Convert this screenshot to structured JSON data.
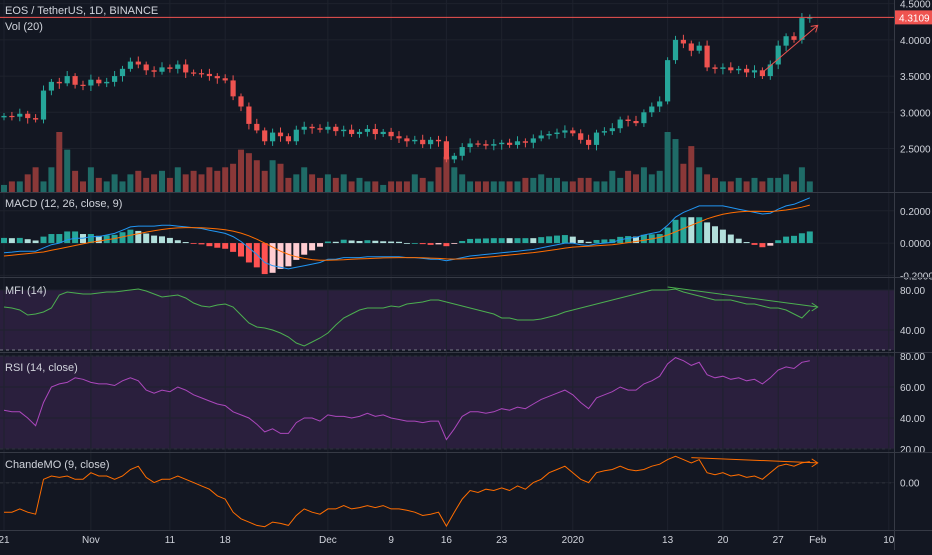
{
  "header": {
    "symbol_line": "EOS / TetherUS, 1D, BINANCE",
    "volume_label": "Vol (20)"
  },
  "colors": {
    "background": "#131722",
    "grid": "#1e222d",
    "separator": "#363a45",
    "up": "#26a69a",
    "down": "#ef5350",
    "volume_up": "#1f6b67",
    "volume_down": "#8a3838",
    "macd_line": "#2196f3",
    "signal_line": "#ff6d00",
    "hist_up_strong": "#26a69a",
    "hist_up_weak": "#b2dfdb",
    "hist_down_strong": "#ff5252",
    "hist_down_weak": "#ffcdd2",
    "mfi_line": "#4caf50",
    "rsi_line": "#ab47bc",
    "chande_line": "#ff6d00",
    "band_fill": "#2a1f3d",
    "price_tag": "#ef5350",
    "trendline": "#ef5350",
    "axis_text": "#d1d4dc"
  },
  "price_tag": "4.3109",
  "x_axis": {
    "ticks": [
      {
        "label": "21",
        "day": 0
      },
      {
        "label": "Nov",
        "day": 11
      },
      {
        "label": "11",
        "day": 21
      },
      {
        "label": "18",
        "day": 28
      },
      {
        "label": "Dec",
        "day": 41
      },
      {
        "label": "9",
        "day": 49
      },
      {
        "label": "16",
        "day": 56
      },
      {
        "label": "23",
        "day": 63
      },
      {
        "label": "2020",
        "day": 72
      },
      {
        "label": "13",
        "day": 84
      },
      {
        "label": "20",
        "day": 91
      },
      {
        "label": "27",
        "day": 98
      },
      {
        "label": "Feb",
        "day": 103
      },
      {
        "label": "10",
        "day": 112
      }
    ]
  },
  "panes": {
    "price": {
      "ylim": [
        1.9,
        4.55
      ],
      "ticks": [
        "2.5000",
        "3.0000",
        "3.5000",
        "4.0000",
        "4.5000"
      ]
    },
    "macd": {
      "label": "MACD (12, 26, close, 9)",
      "ylim": [
        -0.21,
        0.31
      ],
      "ticks": [
        "-0.2000",
        "0.0000",
        "0.2000"
      ]
    },
    "mfi": {
      "label": "MFI (14)",
      "ylim": [
        18,
        92
      ],
      "ticks": [
        "40.00",
        "80.00"
      ],
      "bands": [
        20,
        80
      ]
    },
    "rsi": {
      "label": "RSI (14, close)",
      "ylim": [
        18,
        82
      ],
      "ticks": [
        "20.00",
        "40.00",
        "60.00",
        "80.00"
      ],
      "bands": [
        20,
        80
      ]
    },
    "chande": {
      "label": "ChandeMO (9, close)",
      "ylim": [
        -72,
        45
      ],
      "ticks": [
        "0.00"
      ]
    }
  },
  "chart_data": {
    "type": "line",
    "x_start_day": 0,
    "closes": [
      2.95,
      2.94,
      2.98,
      2.92,
      2.9,
      3.3,
      3.42,
      3.4,
      3.5,
      3.38,
      3.37,
      3.45,
      3.4,
      3.42,
      3.5,
      3.6,
      3.7,
      3.66,
      3.58,
      3.56,
      3.62,
      3.6,
      3.66,
      3.55,
      3.54,
      3.53,
      3.5,
      3.47,
      3.44,
      3.22,
      3.08,
      2.84,
      2.75,
      2.6,
      2.72,
      2.67,
      2.6,
      2.76,
      2.8,
      2.78,
      2.76,
      2.8,
      2.74,
      2.76,
      2.7,
      2.73,
      2.77,
      2.7,
      2.73,
      2.67,
      2.64,
      2.6,
      2.62,
      2.56,
      2.62,
      2.6,
      2.35,
      2.4,
      2.52,
      2.57,
      2.56,
      2.54,
      2.56,
      2.58,
      2.55,
      2.6,
      2.58,
      2.64,
      2.68,
      2.7,
      2.72,
      2.75,
      2.71,
      2.62,
      2.55,
      2.72,
      2.74,
      2.78,
      2.9,
      2.88,
      2.85,
      3.0,
      3.08,
      3.15,
      3.72,
      4.0,
      3.95,
      3.85,
      3.92,
      3.62,
      3.6,
      3.62,
      3.58,
      3.6,
      3.55,
      3.58,
      3.5,
      3.66,
      3.92,
      4.05,
      4.0,
      4.3,
      4.31
    ],
    "volumes": [
      2,
      3,
      3,
      5,
      7,
      3,
      7,
      17,
      12,
      6,
      3,
      7,
      4,
      3,
      5,
      3,
      5,
      6,
      4,
      5,
      6,
      4,
      7,
      5,
      6,
      5,
      7,
      6,
      7,
      8,
      12,
      11,
      9,
      6,
      9,
      8,
      4,
      5,
      7,
      5,
      4,
      5,
      4,
      5,
      3,
      4,
      3,
      3,
      2,
      3,
      3,
      3,
      5,
      4,
      3,
      7,
      10,
      7,
      5,
      3,
      3,
      3,
      3,
      3,
      3,
      3,
      4,
      4,
      5,
      4,
      4,
      3,
      3,
      4,
      4,
      3,
      3,
      6,
      4,
      6,
      5,
      7,
      5,
      6,
      17,
      15,
      8,
      13,
      7,
      5,
      4,
      3,
      3,
      4,
      3,
      4,
      3,
      4,
      4,
      5,
      3,
      7,
      3
    ],
    "macd": [
      -0.06,
      -0.056,
      -0.05,
      -0.05,
      -0.05,
      -0.03,
      -0.01,
      0.0,
      0.02,
      0.03,
      0.03,
      0.04,
      0.04,
      0.05,
      0.06,
      0.08,
      0.1,
      0.105,
      0.105,
      0.105,
      0.11,
      0.11,
      0.105,
      0.1,
      0.095,
      0.09,
      0.08,
      0.07,
      0.06,
      0.04,
      0.01,
      -0.03,
      -0.07,
      -0.12,
      -0.14,
      -0.15,
      -0.16,
      -0.15,
      -0.14,
      -0.13,
      -0.12,
      -0.1,
      -0.1,
      -0.09,
      -0.09,
      -0.09,
      -0.085,
      -0.085,
      -0.085,
      -0.085,
      -0.085,
      -0.09,
      -0.09,
      -0.095,
      -0.1,
      -0.1,
      -0.11,
      -0.1,
      -0.09,
      -0.08,
      -0.075,
      -0.07,
      -0.065,
      -0.06,
      -0.055,
      -0.05,
      -0.045,
      -0.04,
      -0.03,
      -0.02,
      -0.01,
      0.0,
      0.0,
      -0.01,
      -0.015,
      -0.005,
      0.0,
      0.005,
      0.02,
      0.03,
      0.035,
      0.05,
      0.06,
      0.07,
      0.11,
      0.16,
      0.19,
      0.21,
      0.23,
      0.23,
      0.23,
      0.23,
      0.22,
      0.21,
      0.2,
      0.19,
      0.18,
      0.185,
      0.21,
      0.23,
      0.24,
      0.26,
      0.28
    ],
    "signal": [
      -0.08,
      -0.075,
      -0.07,
      -0.065,
      -0.06,
      -0.055,
      -0.045,
      -0.035,
      -0.025,
      -0.015,
      -0.005,
      0.005,
      0.012,
      0.02,
      0.028,
      0.038,
      0.048,
      0.058,
      0.068,
      0.076,
      0.084,
      0.09,
      0.094,
      0.096,
      0.096,
      0.095,
      0.092,
      0.088,
      0.082,
      0.074,
      0.062,
      0.045,
      0.024,
      0.0,
      -0.025,
      -0.05,
      -0.07,
      -0.085,
      -0.095,
      -0.102,
      -0.106,
      -0.106,
      -0.105,
      -0.103,
      -0.1,
      -0.098,
      -0.096,
      -0.094,
      -0.092,
      -0.091,
      -0.09,
      -0.09,
      -0.09,
      -0.091,
      -0.093,
      -0.095,
      -0.098,
      -0.099,
      -0.098,
      -0.096,
      -0.092,
      -0.088,
      -0.084,
      -0.079,
      -0.074,
      -0.069,
      -0.064,
      -0.059,
      -0.053,
      -0.046,
      -0.039,
      -0.031,
      -0.025,
      -0.022,
      -0.02,
      -0.017,
      -0.014,
      -0.01,
      -0.004,
      0.003,
      0.01,
      0.018,
      0.026,
      0.035,
      0.05,
      0.07,
      0.09,
      0.11,
      0.13,
      0.15,
      0.165,
      0.178,
      0.187,
      0.193,
      0.196,
      0.197,
      0.196,
      0.195,
      0.199,
      0.205,
      0.212,
      0.222,
      0.235
    ],
    "mfi": [
      63,
      62,
      60,
      55,
      56,
      58,
      62,
      75,
      78,
      77,
      76,
      76,
      77,
      78,
      78,
      79,
      80,
      81,
      79,
      76,
      73,
      74,
      75,
      72,
      67,
      64,
      63,
      65,
      66,
      63,
      55,
      47,
      43,
      42,
      40,
      37,
      33,
      27,
      24,
      28,
      32,
      37,
      45,
      52,
      56,
      60,
      62,
      62,
      62,
      64,
      63,
      66,
      67,
      68,
      70,
      70,
      68,
      66,
      64,
      62,
      60,
      58,
      56,
      52,
      52,
      50,
      50,
      50,
      51,
      53,
      55,
      58,
      60,
      62,
      64,
      66,
      68,
      70,
      72,
      74,
      76,
      78,
      80,
      80,
      80,
      81,
      78,
      76,
      74,
      72,
      70,
      70,
      70,
      68,
      66,
      66,
      64,
      62,
      62,
      60,
      56,
      52,
      60
    ],
    "rsi": [
      45,
      44,
      44,
      40,
      35,
      50,
      60,
      62,
      63,
      66,
      65,
      63,
      62,
      62,
      61,
      64,
      66,
      64,
      58,
      56,
      58,
      57,
      60,
      58,
      55,
      53,
      51,
      49,
      48,
      44,
      42,
      40,
      36,
      31,
      33,
      30,
      30,
      37,
      40,
      40,
      38,
      42,
      41,
      41,
      40,
      41,
      43,
      41,
      42,
      40,
      39,
      38,
      38,
      37,
      38,
      38,
      26,
      33,
      41,
      44,
      44,
      43,
      44,
      46,
      45,
      47,
      46,
      49,
      52,
      54,
      56,
      58,
      55,
      50,
      46,
      53,
      55,
      57,
      60,
      58,
      58,
      62,
      64,
      67,
      75,
      79,
      77,
      74,
      76,
      68,
      66,
      67,
      65,
      66,
      64,
      65,
      62,
      66,
      71,
      73,
      72,
      76,
      77
    ],
    "chande": [
      -45,
      -45,
      -40,
      -45,
      -48,
      5,
      10,
      8,
      10,
      5,
      5,
      15,
      10,
      10,
      5,
      10,
      20,
      25,
      8,
      0,
      5,
      5,
      10,
      5,
      0,
      -5,
      -10,
      -20,
      -25,
      -45,
      -55,
      -60,
      -65,
      -67,
      -60,
      -62,
      -65,
      -50,
      -40,
      -45,
      -48,
      -40,
      -40,
      -35,
      -40,
      -38,
      -35,
      -38,
      -35,
      -40,
      -40,
      -42,
      -45,
      -50,
      -48,
      -45,
      -66,
      -45,
      -25,
      -12,
      -15,
      -10,
      -12,
      -8,
      -12,
      -5,
      -10,
      0,
      5,
      15,
      20,
      25,
      15,
      5,
      0,
      15,
      18,
      20,
      25,
      20,
      18,
      20,
      25,
      28,
      35,
      40,
      35,
      30,
      35,
      15,
      12,
      15,
      10,
      12,
      8,
      10,
      5,
      15,
      25,
      28,
      25,
      30,
      32
    ],
    "note": "Values estimated from the screenshot; one data point per daily bar."
  },
  "annotations": {
    "price_trendline": {
      "from_day": 96,
      "from_price": 3.55,
      "to_day": 103,
      "to_price": 4.2
    },
    "mfi_trendline": {
      "from_day": 84,
      "from_value": 83,
      "to_day": 103,
      "to_value": 63
    },
    "chande_trendline": {
      "from_day": 87,
      "from_value": 38,
      "to_day": 103,
      "to_value": 30
    }
  }
}
